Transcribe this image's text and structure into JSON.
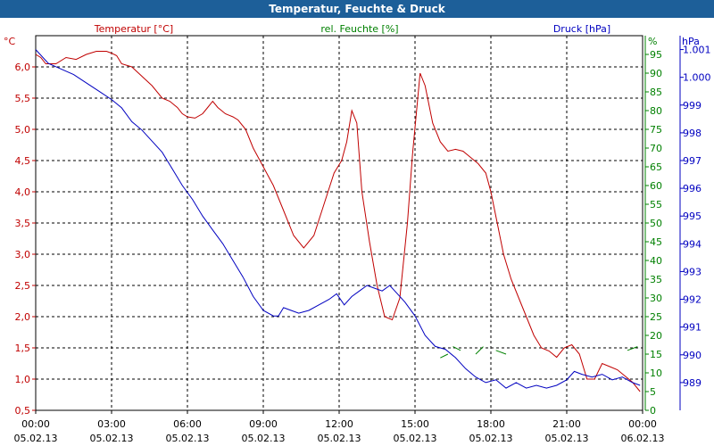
{
  "chart_data": {
    "type": "line",
    "title": "Temperatur, Feuchte & Druck",
    "colors": {
      "temperature": "#c00000",
      "humidity": "#008000",
      "pressure": "#0000c0",
      "title_bar": "#1d5f99"
    },
    "axes": {
      "left": {
        "label": "Temperatur [°C]",
        "unit": "°C",
        "range": [
          0.5,
          6.5
        ],
        "ticks": [
          "0,5",
          "1,0",
          "1,5",
          "2,0",
          "2,5",
          "3,0",
          "3,5",
          "4,0",
          "4,5",
          "5,0",
          "5,5",
          "6,0"
        ]
      },
      "right1": {
        "label": "rel. Feuchte [%]",
        "unit": "%",
        "range": [
          0,
          100
        ],
        "ticks": [
          "0",
          "5",
          "10",
          "15",
          "20",
          "25",
          "30",
          "35",
          "40",
          "45",
          "50",
          "55",
          "60",
          "65",
          "70",
          "75",
          "80",
          "85",
          "90",
          "95"
        ]
      },
      "right2": {
        "label": "Druck [hPa]",
        "unit": "hPa",
        "range": [
          988.0,
          1001.5
        ],
        "ticks": [
          "989",
          "990",
          "991",
          "992",
          "993",
          "994",
          "995",
          "996",
          "997",
          "998",
          "999",
          "1.000",
          "1.001"
        ]
      },
      "x": {
        "range": [
          0,
          24
        ],
        "ticks": [
          {
            "time": "00:00",
            "date": "05.02.13"
          },
          {
            "time": "03:00",
            "date": "05.02.13"
          },
          {
            "time": "06:00",
            "date": "05.02.13"
          },
          {
            "time": "09:00",
            "date": "05.02.13"
          },
          {
            "time": "12:00",
            "date": "05.02.13"
          },
          {
            "time": "15:00",
            "date": "05.02.13"
          },
          {
            "time": "18:00",
            "date": "05.02.13"
          },
          {
            "time": "21:00",
            "date": "05.02.13"
          },
          {
            "time": "00:00",
            "date": "06.02.13"
          }
        ]
      }
    },
    "series": [
      {
        "name": "Temperatur",
        "axis": "left",
        "color": "#c00000",
        "points": [
          [
            0,
            6.2
          ],
          [
            0.2,
            6.15
          ],
          [
            0.4,
            6.05
          ],
          [
            0.8,
            6.05
          ],
          [
            1.2,
            6.15
          ],
          [
            1.6,
            6.12
          ],
          [
            2.0,
            6.2
          ],
          [
            2.4,
            6.25
          ],
          [
            2.8,
            6.25
          ],
          [
            3.0,
            6.22
          ],
          [
            3.2,
            6.18
          ],
          [
            3.4,
            6.05
          ],
          [
            3.8,
            6.0
          ],
          [
            4.2,
            5.85
          ],
          [
            4.6,
            5.7
          ],
          [
            5.0,
            5.5
          ],
          [
            5.3,
            5.45
          ],
          [
            5.6,
            5.35
          ],
          [
            5.8,
            5.25
          ],
          [
            6.0,
            5.2
          ],
          [
            6.3,
            5.18
          ],
          [
            6.6,
            5.25
          ],
          [
            6.8,
            5.35
          ],
          [
            7.0,
            5.45
          ],
          [
            7.2,
            5.35
          ],
          [
            7.5,
            5.25
          ],
          [
            7.8,
            5.2
          ],
          [
            8.0,
            5.15
          ],
          [
            8.3,
            5.0
          ],
          [
            8.6,
            4.7
          ],
          [
            9.0,
            4.4
          ],
          [
            9.4,
            4.1
          ],
          [
            9.8,
            3.7
          ],
          [
            10.2,
            3.3
          ],
          [
            10.6,
            3.1
          ],
          [
            11.0,
            3.3
          ],
          [
            11.4,
            3.8
          ],
          [
            11.8,
            4.3
          ],
          [
            12.1,
            4.5
          ],
          [
            12.3,
            4.8
          ],
          [
            12.5,
            5.3
          ],
          [
            12.7,
            5.1
          ],
          [
            12.9,
            4.0
          ],
          [
            13.2,
            3.2
          ],
          [
            13.5,
            2.5
          ],
          [
            13.8,
            2.0
          ],
          [
            14.1,
            1.95
          ],
          [
            14.4,
            2.3
          ],
          [
            14.7,
            3.5
          ],
          [
            14.9,
            4.6
          ],
          [
            15.2,
            5.9
          ],
          [
            15.4,
            5.7
          ],
          [
            15.7,
            5.1
          ],
          [
            16.0,
            4.8
          ],
          [
            16.3,
            4.65
          ],
          [
            16.6,
            4.68
          ],
          [
            16.9,
            4.65
          ],
          [
            17.2,
            4.55
          ],
          [
            17.5,
            4.45
          ],
          [
            17.8,
            4.3
          ],
          [
            18.0,
            4.0
          ],
          [
            18.2,
            3.6
          ],
          [
            18.5,
            3.0
          ],
          [
            18.8,
            2.6
          ],
          [
            19.1,
            2.3
          ],
          [
            19.4,
            2.0
          ],
          [
            19.7,
            1.7
          ],
          [
            20.0,
            1.5
          ],
          [
            20.3,
            1.45
          ],
          [
            20.6,
            1.35
          ],
          [
            20.9,
            1.5
          ],
          [
            21.2,
            1.55
          ],
          [
            21.5,
            1.4
          ],
          [
            21.8,
            1.0
          ],
          [
            22.1,
            1.0
          ],
          [
            22.4,
            1.25
          ],
          [
            22.7,
            1.2
          ],
          [
            23.0,
            1.15
          ],
          [
            23.3,
            1.05
          ],
          [
            23.6,
            0.95
          ],
          [
            23.9,
            0.8
          ]
        ]
      },
      {
        "name": "rel. Feuchte",
        "axis": "right1",
        "color": "#008000",
        "dashed": true,
        "points": [
          [
            16.0,
            14
          ],
          [
            16.3,
            15
          ],
          [
            16.5,
            17
          ],
          [
            16.8,
            16
          ],
          [
            17.4,
            15
          ],
          [
            17.7,
            17
          ],
          [
            18.2,
            16
          ],
          [
            18.6,
            15
          ],
          [
            23.4,
            16
          ],
          [
            23.8,
            17
          ]
        ]
      },
      {
        "name": "Druck",
        "axis": "right2",
        "color": "#0000c0",
        "points": [
          [
            0,
            1001.0
          ],
          [
            0.5,
            1000.5
          ],
          [
            1.0,
            1000.3
          ],
          [
            1.5,
            1000.1
          ],
          [
            2.0,
            999.8
          ],
          [
            2.5,
            999.5
          ],
          [
            3.0,
            999.2
          ],
          [
            3.4,
            998.9
          ],
          [
            3.8,
            998.4
          ],
          [
            4.2,
            998.1
          ],
          [
            4.6,
            997.7
          ],
          [
            5.0,
            997.3
          ],
          [
            5.4,
            996.7
          ],
          [
            5.8,
            996.1
          ],
          [
            6.2,
            995.6
          ],
          [
            6.6,
            995.0
          ],
          [
            7.0,
            994.5
          ],
          [
            7.4,
            994.0
          ],
          [
            7.8,
            993.4
          ],
          [
            8.2,
            992.8
          ],
          [
            8.6,
            992.1
          ],
          [
            9.0,
            991.6
          ],
          [
            9.4,
            991.4
          ],
          [
            9.6,
            991.4
          ],
          [
            9.8,
            991.7
          ],
          [
            10.1,
            991.6
          ],
          [
            10.4,
            991.5
          ],
          [
            10.8,
            991.6
          ],
          [
            11.2,
            991.8
          ],
          [
            11.6,
            992.0
          ],
          [
            11.9,
            992.2
          ],
          [
            12.2,
            991.8
          ],
          [
            12.5,
            992.1
          ],
          [
            12.8,
            992.3
          ],
          [
            13.1,
            992.5
          ],
          [
            13.4,
            992.4
          ],
          [
            13.7,
            992.3
          ],
          [
            14.0,
            992.5
          ],
          [
            14.3,
            992.2
          ],
          [
            14.6,
            991.9
          ],
          [
            15.0,
            991.4
          ],
          [
            15.4,
            990.7
          ],
          [
            15.8,
            990.3
          ],
          [
            16.2,
            990.2
          ],
          [
            16.6,
            989.9
          ],
          [
            17.0,
            989.5
          ],
          [
            17.4,
            989.2
          ],
          [
            17.8,
            989.0
          ],
          [
            18.2,
            989.1
          ],
          [
            18.6,
            988.8
          ],
          [
            19.0,
            989.0
          ],
          [
            19.4,
            988.8
          ],
          [
            19.8,
            988.9
          ],
          [
            20.2,
            988.8
          ],
          [
            20.6,
            988.9
          ],
          [
            21.0,
            989.1
          ],
          [
            21.3,
            989.4
          ],
          [
            21.6,
            989.3
          ],
          [
            22.0,
            989.2
          ],
          [
            22.4,
            989.3
          ],
          [
            22.8,
            989.1
          ],
          [
            23.2,
            989.2
          ],
          [
            23.6,
            989.0
          ],
          [
            23.9,
            988.9
          ]
        ]
      }
    ]
  }
}
